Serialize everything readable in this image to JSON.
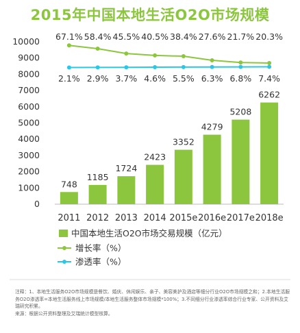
{
  "colors": {
    "title": "#8cc63e",
    "bar": "#8cc63e",
    "growth_line": "#8cc63e",
    "penetration_line": "#2cc7e6",
    "axis_text": "#333333"
  },
  "chart_data": {
    "type": "bar",
    "title": "2015年中国本地生活O2O市场规模",
    "categories": [
      "2011",
      "2012",
      "2013",
      "2014",
      "2015e",
      "2016e",
      "2017e",
      "2018e"
    ],
    "ylim": [
      0,
      10000
    ],
    "yticks": [
      0,
      1000,
      2000,
      3000,
      4000,
      5000,
      6000,
      7000,
      8000,
      9000,
      10000
    ],
    "grid": false,
    "legend_position": "bottom-left",
    "series": [
      {
        "name": "中国本地生活O2O市场交易规模（亿元）",
        "type": "bar",
        "values": [
          748,
          1185,
          1724,
          2423,
          3352,
          4279,
          5208,
          6262
        ],
        "labels": [
          "748",
          "1185",
          "1724",
          "2423",
          "3352",
          "4279",
          "5208",
          "6262"
        ]
      },
      {
        "name": "增长率（%）",
        "type": "line",
        "values": [
          67.1,
          58.4,
          45.5,
          40.5,
          38.4,
          27.6,
          21.7,
          20.3
        ],
        "labels": [
          "67.1%",
          "58.4%",
          "45.5%",
          "40.5%",
          "38.4%",
          "27.6%",
          "21.7%",
          "20.3%"
        ]
      },
      {
        "name": "渗透率（%）",
        "type": "line",
        "values": [
          2.1,
          2.9,
          3.7,
          4.6,
          5.5,
          6.3,
          6.8,
          7.4
        ],
        "labels": [
          "2.1%",
          "2.9%",
          "3.7%",
          "4.6%",
          "5.5%",
          "6.3%",
          "6.8%",
          "7.4%"
        ]
      }
    ]
  },
  "notes": {
    "line1": "注释：1、本地生活服务O2O市场规模是餐饮、婚庆、休闲娱乐、亲子、美容美护及酒店等细分行业O2O市场规模之和；2.本地生活服务O2O渗透率=本地生活服务线上市场规模/本地生活服务整体市场规模*100%；3.不同细分行业渗透率综合行业专家、公开资料及艾瑞研究积累。",
    "line2": "来源：根据公开资料整理及艾瑞统计模型核算。"
  }
}
